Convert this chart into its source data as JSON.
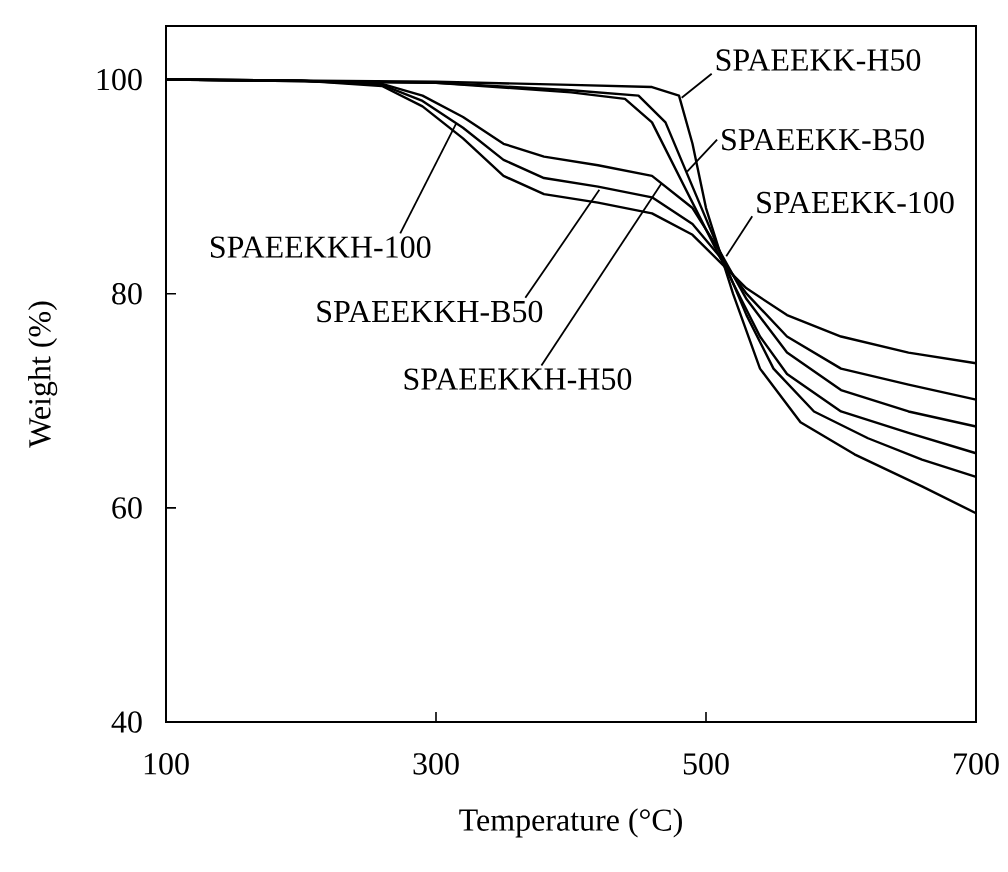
{
  "chart_data": {
    "type": "line",
    "xlabel": "Temperature (°C)",
    "ylabel": "Weight (%)",
    "xlim": [
      100,
      700
    ],
    "ylim": [
      40,
      105
    ],
    "xticks": [
      100,
      300,
      500,
      700
    ],
    "yticks": [
      40,
      60,
      80,
      100
    ],
    "series": [
      {
        "color": "#000000",
        "x": [
          100,
          200,
          260,
          290,
          320,
          350,
          380,
          420,
          460,
          490,
          510,
          530,
          560,
          600,
          650,
          700
        ],
        "values": [
          100,
          99.9,
          99.4,
          97.5,
          94.5,
          91,
          89.3,
          88.5,
          87.5,
          85.5,
          83,
          80.5,
          78,
          76,
          74.5,
          73.5
        ]
      },
      {
        "color": "#000000",
        "x": [
          100,
          200,
          260,
          290,
          320,
          350,
          380,
          420,
          460,
          490,
          510,
          530,
          560,
          600,
          650,
          700
        ],
        "values": [
          100,
          99.9,
          99.5,
          98,
          95.5,
          92.5,
          90.8,
          90,
          89,
          86.5,
          83.5,
          80,
          76,
          73,
          71.5,
          70.1
        ]
      },
      {
        "color": "#000000",
        "x": [
          100,
          200,
          260,
          290,
          320,
          350,
          380,
          420,
          460,
          490,
          510,
          530,
          560,
          600,
          650,
          700
        ],
        "values": [
          100,
          99.9,
          99.6,
          98.5,
          96.5,
          94,
          92.8,
          92,
          91,
          88,
          84,
          79.5,
          74.5,
          71,
          69,
          67.6
        ]
      },
      {
        "color": "#000000",
        "x": [
          100,
          300,
          400,
          440,
          460,
          480,
          500,
          520,
          540,
          560,
          600,
          650,
          700
        ],
        "values": [
          100,
          99.7,
          98.8,
          98.2,
          96,
          91,
          86,
          81,
          76,
          72.5,
          69,
          67,
          65.1
        ]
      },
      {
        "color": "#000000",
        "x": [
          100,
          300,
          400,
          450,
          470,
          490,
          510,
          530,
          550,
          580,
          620,
          660,
          700
        ],
        "values": [
          100,
          99.7,
          99,
          98.5,
          96,
          90,
          84,
          78,
          73,
          69,
          66.5,
          64.5,
          62.9
        ]
      },
      {
        "color": "#000000",
        "x": [
          100,
          300,
          400,
          460,
          480,
          490,
          500,
          520,
          540,
          570,
          610,
          660,
          700
        ],
        "values": [
          100,
          99.8,
          99.5,
          99.3,
          98.5,
          94,
          88,
          80,
          73,
          68,
          65,
          62,
          59.5
        ]
      }
    ],
    "annotations": [
      {
        "text": "SPAEEKK-H50",
        "x": 482,
        "y": 98.3
      },
      {
        "text": "SPAEEKK-B50",
        "x": 486,
        "y": 91.4
      },
      {
        "text": "SPAEEKK-100",
        "x": 515,
        "y": 83.5
      },
      {
        "text": "SPAEEKKH-100",
        "x": 315,
        "y": 95.9
      },
      {
        "text": "SPAEEKKH-B50",
        "x": 421,
        "y": 89.7
      },
      {
        "text": "SPAEEKKH-H50",
        "x": 467,
        "y": 90.3
      }
    ]
  }
}
